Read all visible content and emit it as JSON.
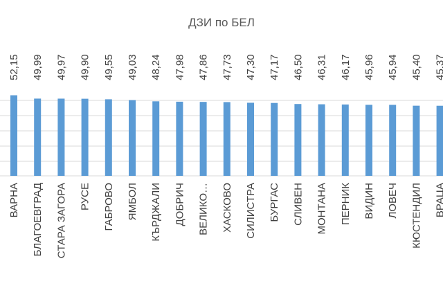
{
  "chart_data": {
    "type": "bar",
    "title": "ДЗИ по БЕЛ",
    "categories": [
      "ВАРНА",
      "БЛАГОЕВГРАД",
      "СТАРА ЗАГОРА",
      "РУСЕ",
      "ГАБРОВО",
      "ЯМБОЛ",
      "КЪРДЖАЛИ",
      "ДОБРИЧ",
      "ВЕЛИКО…",
      "ХАСКОВО",
      "СИЛИСТРА",
      "БУРГАС",
      "СЛИВЕН",
      "МОНТАНА",
      "ПЕРНИК",
      "ВИДИН",
      "ЛОВЕЧ",
      "КЮСТЕНДИЛ",
      "ВРАЦА"
    ],
    "values": [
      52.15,
      49.99,
      49.97,
      49.9,
      49.55,
      49.03,
      48.24,
      47.98,
      47.86,
      47.73,
      47.3,
      47.17,
      46.5,
      46.31,
      46.17,
      45.96,
      45.94,
      45.4,
      45.37
    ],
    "data_labels": [
      "52,15",
      "49,99",
      "49,97",
      "49,90",
      "49,55",
      "49,03",
      "48,24",
      "47,98",
      "47,86",
      "47,73",
      "47,30",
      "47,17",
      "46,50",
      "46,31",
      "46,17",
      "45,96",
      "45,94",
      "45,40",
      "45,37"
    ],
    "xlabel": "",
    "ylabel": "",
    "ylim": [
      0,
      56
    ],
    "grid": true,
    "bar_color": "#5B9BD5",
    "grid_color": "#d9d9d9"
  }
}
